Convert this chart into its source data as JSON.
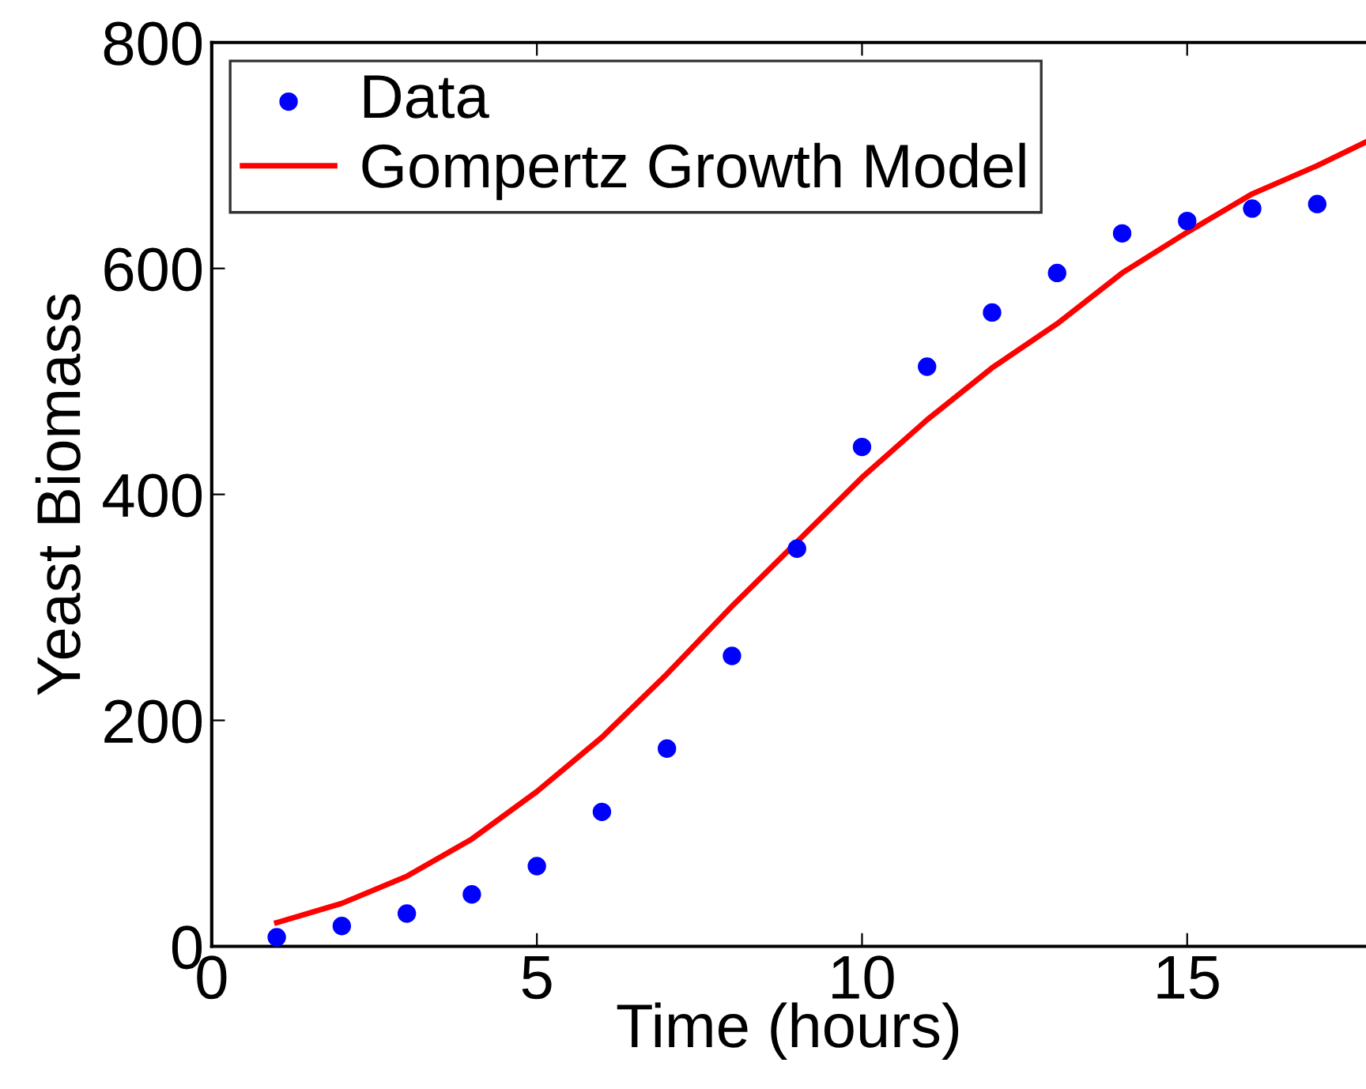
{
  "chart_data": {
    "type": "scatter",
    "xlabel": "Time (hours)",
    "ylabel": "Yeast Biomass",
    "xlim": [
      0,
      17.75
    ],
    "xticks": [
      0,
      5,
      10,
      15
    ],
    "ylim": [
      0,
      800
    ],
    "yticks": [
      0,
      200,
      400,
      600,
      800
    ],
    "grid": false,
    "legend": "top left",
    "series": [
      {
        "name": "Data",
        "marker": "circle",
        "color": "#0000ff",
        "x": [
          1,
          2,
          3,
          4,
          5,
          6,
          7,
          8,
          9,
          10,
          11,
          12,
          13,
          14,
          15,
          16,
          17
        ],
        "values": [
          8,
          18,
          29,
          46,
          71,
          119,
          175,
          257,
          352,
          442,
          513,
          561,
          596,
          631,
          642,
          653,
          657
        ]
      },
      {
        "name": "Gompertz Growth Model",
        "type": "line",
        "marker": "none",
        "line_style": "solid",
        "color": "#ff0000",
        "x": [
          1,
          2,
          3,
          4,
          5,
          6,
          7,
          8,
          9,
          10,
          11,
          12,
          13,
          14,
          15,
          16,
          17,
          17.75
        ],
        "values": [
          21,
          38,
          62,
          95,
          137,
          185,
          241,
          301,
          358,
          415,
          466,
          512,
          551,
          596,
          632,
          666,
          691,
          712
        ]
      }
    ]
  }
}
